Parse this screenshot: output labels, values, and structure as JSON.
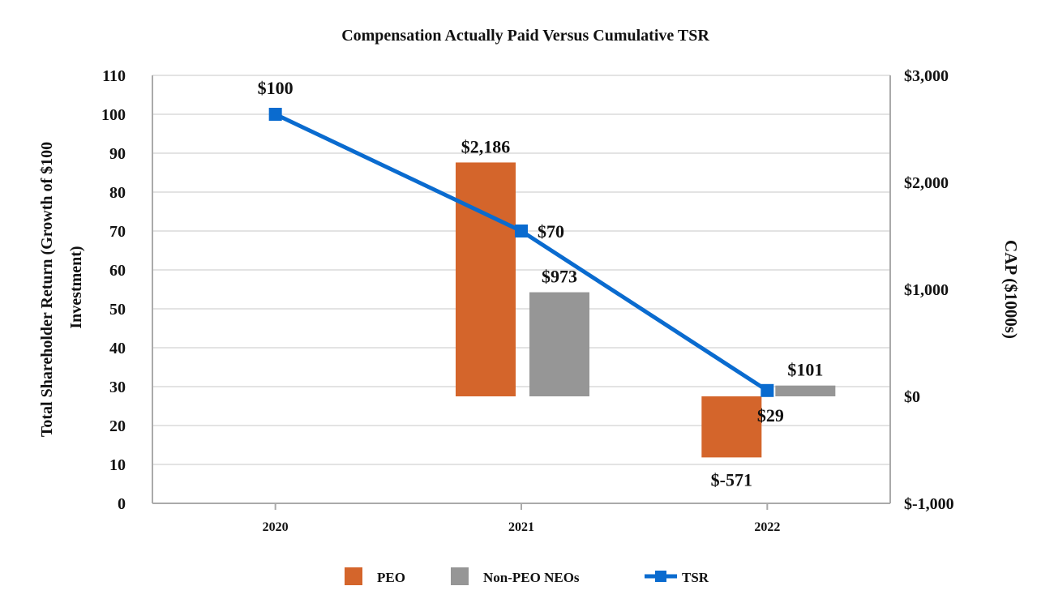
{
  "chart_data": {
    "type": "bar+line",
    "title": "Compensation Actually Paid Versus Cumulative TSR",
    "categories": [
      "2020",
      "2021",
      "2022"
    ],
    "y_left": {
      "label": "Total Shareholder Return (Growth of $100 Investment)",
      "range": [
        0,
        110
      ],
      "ticks": [
        "0",
        "10",
        "20",
        "30",
        "40",
        "50",
        "60",
        "70",
        "80",
        "90",
        "100",
        "110"
      ]
    },
    "y_right": {
      "label": "CAP ($1000s)",
      "range": [
        -1000,
        3000
      ],
      "ticks": [
        "$-1,000",
        "$0",
        "$1,000",
        "$2,000",
        "$3,000"
      ]
    },
    "grid": true,
    "legend_position": "bottom",
    "series": [
      {
        "name": "PEO",
        "type": "bar",
        "axis": "right",
        "color": "#d4652b",
        "values": [
          null,
          2186,
          -571
        ],
        "labels": [
          "",
          "$2,186",
          "$-571"
        ]
      },
      {
        "name": "Non-PEO NEOs",
        "type": "bar",
        "axis": "right",
        "color": "#969696",
        "values": [
          null,
          973,
          101
        ],
        "labels": [
          "",
          "$973",
          "$101"
        ]
      },
      {
        "name": "TSR",
        "type": "line",
        "axis": "left",
        "color": "#0a6bcf",
        "values": [
          100,
          70,
          29
        ],
        "labels": [
          "$100",
          "$70",
          "$29"
        ]
      }
    ]
  }
}
